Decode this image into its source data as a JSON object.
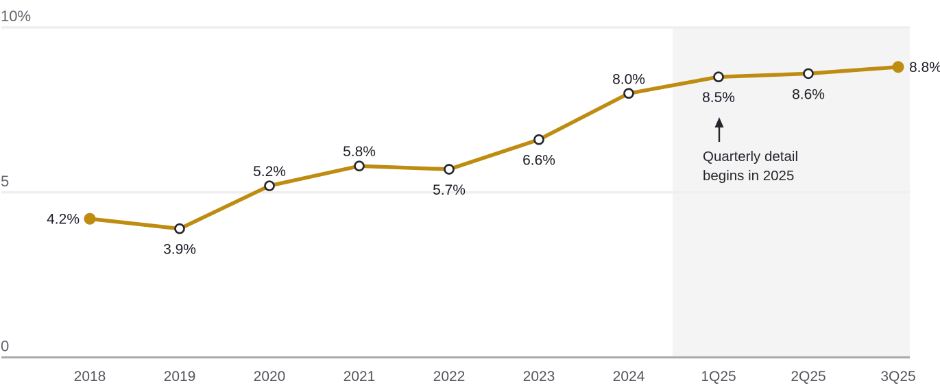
{
  "colors": {
    "line": "#BE8C10",
    "marker_open_fill": "#ffffff",
    "marker_stroke": "#26262e",
    "data_label": "#1c1c26",
    "axis_line": "#a9a9a9",
    "gridline": "#efefef",
    "xtick_label": "#55555e",
    "ytick_label": "#63636d",
    "shade": "#f4f4f4",
    "annotation_text": "#26262e"
  },
  "chart_data": {
    "type": "line",
    "title": "",
    "xlabel": "",
    "ylabel": "",
    "categories": [
      "2018",
      "2019",
      "2020",
      "2021",
      "2022",
      "2023",
      "2024",
      "1Q25",
      "2Q25",
      "3Q25"
    ],
    "values": [
      4.2,
      3.9,
      5.2,
      5.8,
      5.7,
      6.6,
      8.0,
      8.5,
      8.6,
      8.8
    ],
    "point_labels": [
      "4.2%",
      "3.9%",
      "5.2%",
      "5.8%",
      "5.7%",
      "6.6%",
      "8.0%",
      "8.5%",
      "8.6%",
      "8.8%"
    ],
    "label_placement": [
      "left",
      "below",
      "above",
      "above",
      "below",
      "below",
      "above",
      "below",
      "below",
      "right"
    ],
    "marker_filled": [
      true,
      false,
      false,
      false,
      false,
      false,
      false,
      false,
      false,
      true
    ],
    "ylim": [
      0,
      10
    ],
    "yticks": [
      {
        "value": 10,
        "label": "10%"
      },
      {
        "value": 5,
        "label": "5"
      },
      {
        "value": 0,
        "label": "0"
      }
    ],
    "grid": true,
    "legend": false,
    "shaded_region": {
      "covers_categories": [
        "1Q25",
        "2Q25",
        "3Q25"
      ],
      "starts_between": [
        "2024",
        "1Q25"
      ]
    },
    "annotation": {
      "lines": [
        "Quarterly detail",
        "begins in 2025"
      ],
      "arrow": "up",
      "target_category": "1Q25"
    }
  }
}
